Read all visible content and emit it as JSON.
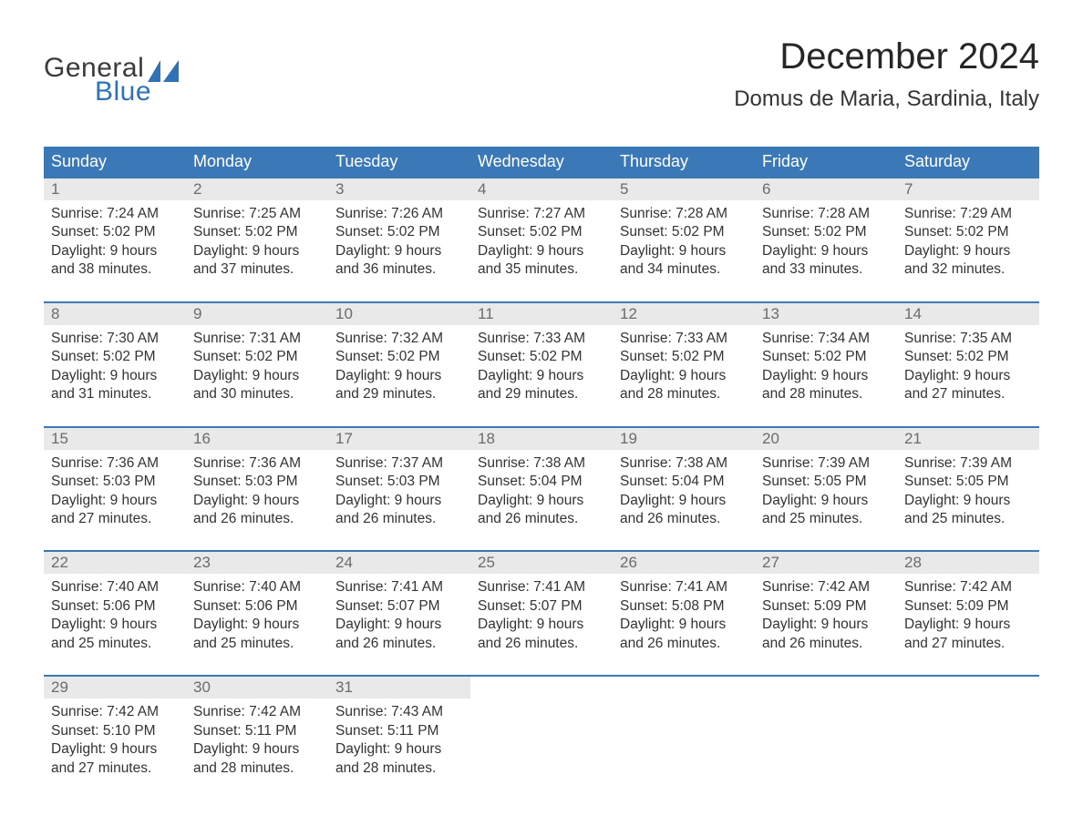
{
  "logo": {
    "text_general": "General",
    "text_blue": "Blue",
    "icon_color": "#2f72b8"
  },
  "title": "December 2024",
  "location": "Domus de Maria, Sardinia, Italy",
  "colors": {
    "header_bg": "#3b78b8",
    "header_text": "#ffffff",
    "daynum_bg": "#e9e9e9",
    "daynum_text": "#6b6b6b",
    "body_text": "#333333",
    "rule": "#3b78b8",
    "page_bg": "#ffffff"
  },
  "typography": {
    "title_fontsize": 40,
    "location_fontsize": 24,
    "header_fontsize": 18,
    "daynum_fontsize": 17,
    "body_fontsize": 15.5,
    "logo_fontsize": 30
  },
  "day_headers": [
    "Sunday",
    "Monday",
    "Tuesday",
    "Wednesday",
    "Thursday",
    "Friday",
    "Saturday"
  ],
  "weeks": [
    [
      {
        "n": "1",
        "sunrise": "Sunrise: 7:24 AM",
        "sunset": "Sunset: 5:02 PM",
        "d1": "Daylight: 9 hours",
        "d2": "and 38 minutes."
      },
      {
        "n": "2",
        "sunrise": "Sunrise: 7:25 AM",
        "sunset": "Sunset: 5:02 PM",
        "d1": "Daylight: 9 hours",
        "d2": "and 37 minutes."
      },
      {
        "n": "3",
        "sunrise": "Sunrise: 7:26 AM",
        "sunset": "Sunset: 5:02 PM",
        "d1": "Daylight: 9 hours",
        "d2": "and 36 minutes."
      },
      {
        "n": "4",
        "sunrise": "Sunrise: 7:27 AM",
        "sunset": "Sunset: 5:02 PM",
        "d1": "Daylight: 9 hours",
        "d2": "and 35 minutes."
      },
      {
        "n": "5",
        "sunrise": "Sunrise: 7:28 AM",
        "sunset": "Sunset: 5:02 PM",
        "d1": "Daylight: 9 hours",
        "d2": "and 34 minutes."
      },
      {
        "n": "6",
        "sunrise": "Sunrise: 7:28 AM",
        "sunset": "Sunset: 5:02 PM",
        "d1": "Daylight: 9 hours",
        "d2": "and 33 minutes."
      },
      {
        "n": "7",
        "sunrise": "Sunrise: 7:29 AM",
        "sunset": "Sunset: 5:02 PM",
        "d1": "Daylight: 9 hours",
        "d2": "and 32 minutes."
      }
    ],
    [
      {
        "n": "8",
        "sunrise": "Sunrise: 7:30 AM",
        "sunset": "Sunset: 5:02 PM",
        "d1": "Daylight: 9 hours",
        "d2": "and 31 minutes."
      },
      {
        "n": "9",
        "sunrise": "Sunrise: 7:31 AM",
        "sunset": "Sunset: 5:02 PM",
        "d1": "Daylight: 9 hours",
        "d2": "and 30 minutes."
      },
      {
        "n": "10",
        "sunrise": "Sunrise: 7:32 AM",
        "sunset": "Sunset: 5:02 PM",
        "d1": "Daylight: 9 hours",
        "d2": "and 29 minutes."
      },
      {
        "n": "11",
        "sunrise": "Sunrise: 7:33 AM",
        "sunset": "Sunset: 5:02 PM",
        "d1": "Daylight: 9 hours",
        "d2": "and 29 minutes."
      },
      {
        "n": "12",
        "sunrise": "Sunrise: 7:33 AM",
        "sunset": "Sunset: 5:02 PM",
        "d1": "Daylight: 9 hours",
        "d2": "and 28 minutes."
      },
      {
        "n": "13",
        "sunrise": "Sunrise: 7:34 AM",
        "sunset": "Sunset: 5:02 PM",
        "d1": "Daylight: 9 hours",
        "d2": "and 28 minutes."
      },
      {
        "n": "14",
        "sunrise": "Sunrise: 7:35 AM",
        "sunset": "Sunset: 5:02 PM",
        "d1": "Daylight: 9 hours",
        "d2": "and 27 minutes."
      }
    ],
    [
      {
        "n": "15",
        "sunrise": "Sunrise: 7:36 AM",
        "sunset": "Sunset: 5:03 PM",
        "d1": "Daylight: 9 hours",
        "d2": "and 27 minutes."
      },
      {
        "n": "16",
        "sunrise": "Sunrise: 7:36 AM",
        "sunset": "Sunset: 5:03 PM",
        "d1": "Daylight: 9 hours",
        "d2": "and 26 minutes."
      },
      {
        "n": "17",
        "sunrise": "Sunrise: 7:37 AM",
        "sunset": "Sunset: 5:03 PM",
        "d1": "Daylight: 9 hours",
        "d2": "and 26 minutes."
      },
      {
        "n": "18",
        "sunrise": "Sunrise: 7:38 AM",
        "sunset": "Sunset: 5:04 PM",
        "d1": "Daylight: 9 hours",
        "d2": "and 26 minutes."
      },
      {
        "n": "19",
        "sunrise": "Sunrise: 7:38 AM",
        "sunset": "Sunset: 5:04 PM",
        "d1": "Daylight: 9 hours",
        "d2": "and 26 minutes."
      },
      {
        "n": "20",
        "sunrise": "Sunrise: 7:39 AM",
        "sunset": "Sunset: 5:05 PM",
        "d1": "Daylight: 9 hours",
        "d2": "and 25 minutes."
      },
      {
        "n": "21",
        "sunrise": "Sunrise: 7:39 AM",
        "sunset": "Sunset: 5:05 PM",
        "d1": "Daylight: 9 hours",
        "d2": "and 25 minutes."
      }
    ],
    [
      {
        "n": "22",
        "sunrise": "Sunrise: 7:40 AM",
        "sunset": "Sunset: 5:06 PM",
        "d1": "Daylight: 9 hours",
        "d2": "and 25 minutes."
      },
      {
        "n": "23",
        "sunrise": "Sunrise: 7:40 AM",
        "sunset": "Sunset: 5:06 PM",
        "d1": "Daylight: 9 hours",
        "d2": "and 25 minutes."
      },
      {
        "n": "24",
        "sunrise": "Sunrise: 7:41 AM",
        "sunset": "Sunset: 5:07 PM",
        "d1": "Daylight: 9 hours",
        "d2": "and 26 minutes."
      },
      {
        "n": "25",
        "sunrise": "Sunrise: 7:41 AM",
        "sunset": "Sunset: 5:07 PM",
        "d1": "Daylight: 9 hours",
        "d2": "and 26 minutes."
      },
      {
        "n": "26",
        "sunrise": "Sunrise: 7:41 AM",
        "sunset": "Sunset: 5:08 PM",
        "d1": "Daylight: 9 hours",
        "d2": "and 26 minutes."
      },
      {
        "n": "27",
        "sunrise": "Sunrise: 7:42 AM",
        "sunset": "Sunset: 5:09 PM",
        "d1": "Daylight: 9 hours",
        "d2": "and 26 minutes."
      },
      {
        "n": "28",
        "sunrise": "Sunrise: 7:42 AM",
        "sunset": "Sunset: 5:09 PM",
        "d1": "Daylight: 9 hours",
        "d2": "and 27 minutes."
      }
    ],
    [
      {
        "n": "29",
        "sunrise": "Sunrise: 7:42 AM",
        "sunset": "Sunset: 5:10 PM",
        "d1": "Daylight: 9 hours",
        "d2": "and 27 minutes."
      },
      {
        "n": "30",
        "sunrise": "Sunrise: 7:42 AM",
        "sunset": "Sunset: 5:11 PM",
        "d1": "Daylight: 9 hours",
        "d2": "and 28 minutes."
      },
      {
        "n": "31",
        "sunrise": "Sunrise: 7:43 AM",
        "sunset": "Sunset: 5:11 PM",
        "d1": "Daylight: 9 hours",
        "d2": "and 28 minutes."
      },
      null,
      null,
      null,
      null
    ]
  ]
}
